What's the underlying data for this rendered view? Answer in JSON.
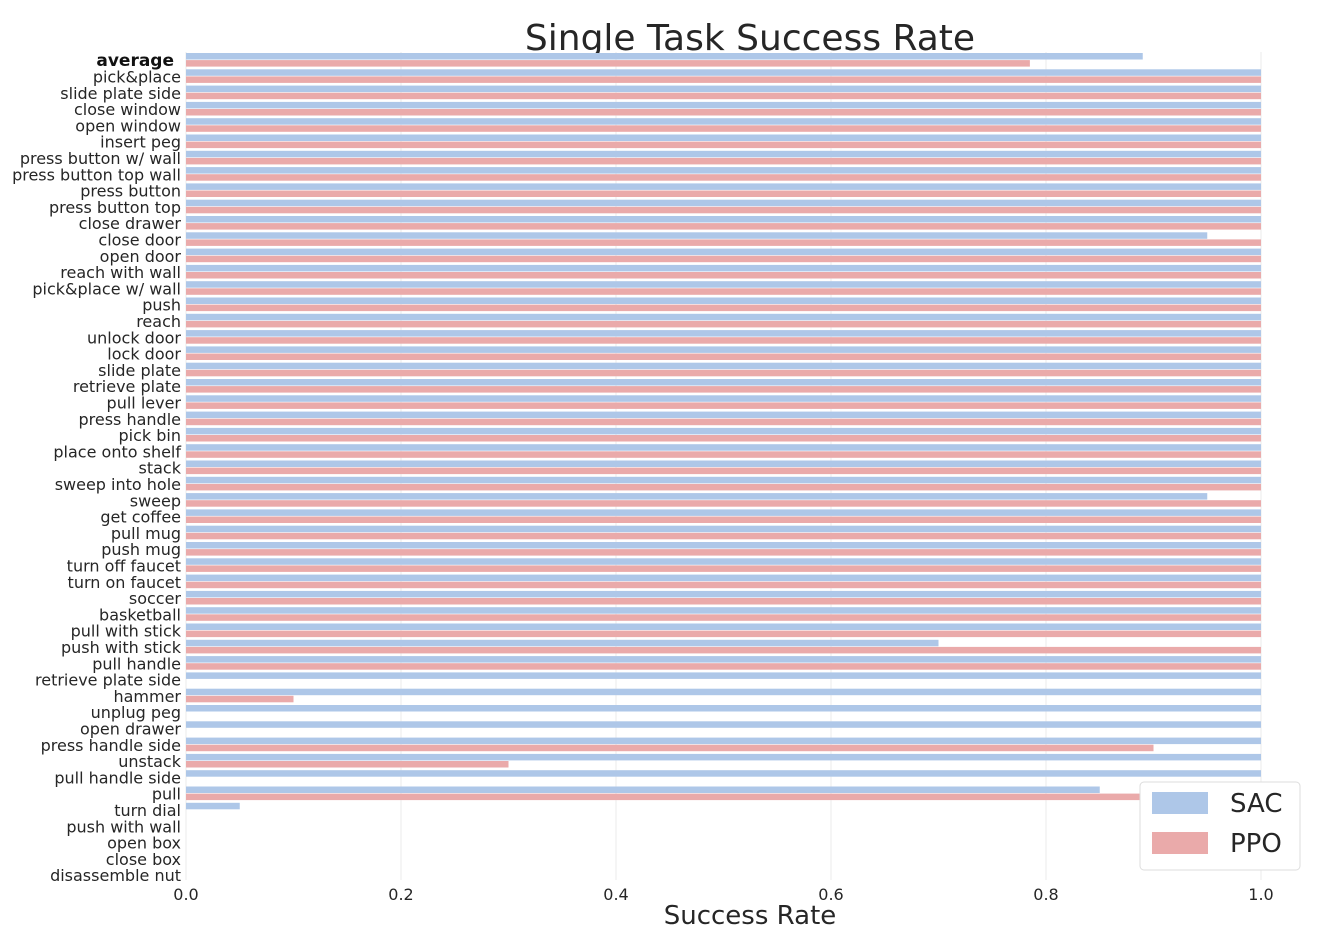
{
  "chart_data": {
    "type": "bar",
    "orientation": "horizontal",
    "title": "Single Task Success Rate",
    "xlabel": "Success Rate",
    "ylabel": "",
    "xlim": [
      0,
      1.0
    ],
    "xticks": [
      "0.0",
      "0.2",
      "0.4",
      "0.6",
      "0.8",
      "1.0"
    ],
    "grid": true,
    "legend_position": "bottom-right",
    "colors": {
      "SAC": "#aec7e8",
      "PPO": "#eaaaaa"
    },
    "categories": [
      "average",
      "pick&place",
      "slide plate side",
      "close window",
      "open window",
      "insert peg",
      "press button w/ wall",
      "press button top wall",
      "press button",
      "press button top",
      "close drawer",
      "close door",
      "open door",
      "reach with wall",
      "pick&place w/ wall",
      "push",
      "reach",
      "unlock door",
      "lock door",
      "slide plate",
      "retrieve plate",
      "pull lever",
      "press handle",
      "pick bin",
      "place onto shelf",
      "stack",
      "sweep into hole",
      "sweep",
      "get coffee",
      "pull mug",
      "push mug",
      "turn off faucet",
      "turn on faucet",
      "soccer",
      "basketball",
      "pull with stick",
      "push with stick",
      "pull handle",
      "retrieve plate side",
      "hammer",
      "unplug peg",
      "open drawer",
      "press handle side",
      "unstack",
      "pull handle side",
      "pull",
      "turn dial",
      "push with wall",
      "open box",
      "close box",
      "disassemble nut"
    ],
    "series": [
      {
        "name": "SAC",
        "values": [
          0.89,
          1,
          1,
          1,
          1,
          1,
          1,
          1,
          1,
          1,
          1,
          0.95,
          1,
          1,
          1,
          1,
          1,
          1,
          1,
          1,
          1,
          1,
          1,
          1,
          1,
          1,
          1,
          0.95,
          1,
          1,
          1,
          1,
          1,
          1,
          1,
          1,
          0.7,
          1,
          1,
          1,
          1,
          1,
          1,
          1,
          1,
          0.85,
          0.05,
          0,
          0,
          0,
          0
        ]
      },
      {
        "name": "PPO",
        "values": [
          0.785,
          1,
          1,
          1,
          1,
          1,
          1,
          1,
          1,
          1,
          1,
          1,
          1,
          1,
          1,
          1,
          1,
          1,
          1,
          1,
          1,
          1,
          1,
          1,
          1,
          1,
          1,
          1,
          1,
          1,
          1,
          1,
          1,
          1,
          1,
          1,
          1,
          1,
          0,
          0.1,
          0,
          0,
          0.9,
          0.3,
          0,
          0.9,
          0,
          0,
          0,
          0,
          0
        ]
      }
    ]
  }
}
